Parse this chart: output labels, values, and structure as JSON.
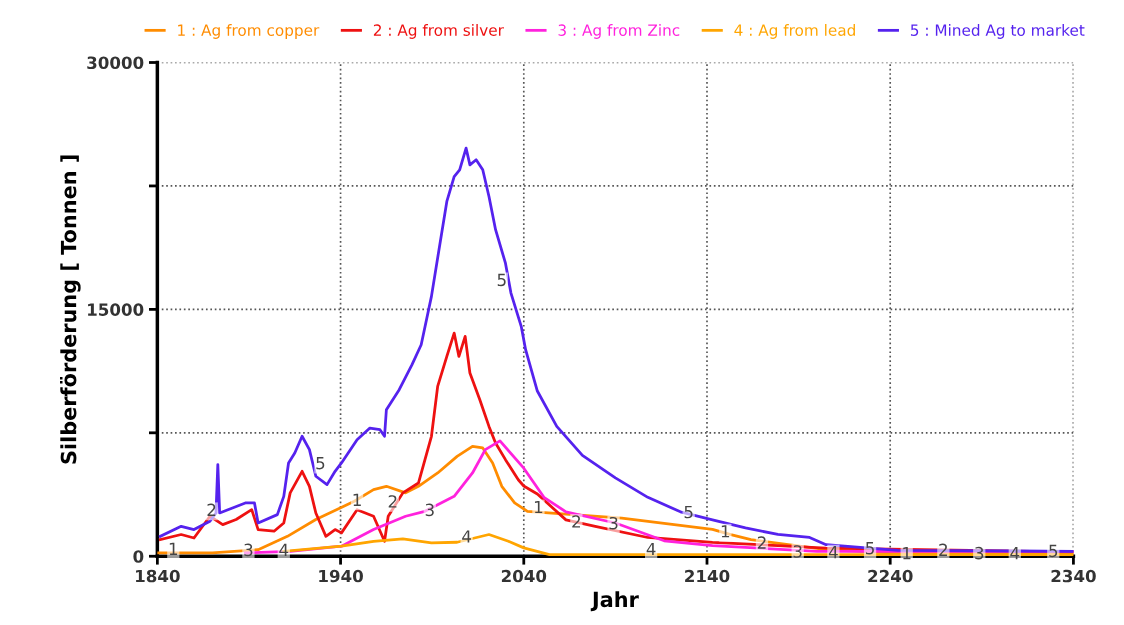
{
  "chart_data": {
    "type": "line",
    "xlabel": "Jahr",
    "ylabel": "Silberförderung [ Tonnen ]",
    "xlim": [
      1840,
      2340
    ],
    "xticks": [
      1840,
      1940,
      2040,
      2140,
      2240,
      2340
    ],
    "ylim": [
      0,
      30000
    ],
    "yticks": [
      0,
      {
        "value": 7500,
        "label": null
      },
      15000,
      {
        "value": 22500,
        "label": null
      },
      30000
    ],
    "grid": true,
    "legend": "top",
    "line_style": "solid",
    "marker": "none",
    "series": [
      {
        "name": "1 : Ag from copper",
        "color": "#ff8c00",
        "x": [
          1840,
          1870,
          1895,
          1911,
          1926.5,
          1947.5,
          1958,
          1965,
          1975.5,
          1982.5,
          1993,
          2003.6,
          2012,
          2017.6,
          2023,
          2028,
          2035,
          2042,
          2093.5,
          2143,
          2153,
          2164,
          2205,
          2240,
          2340
        ],
        "values": [
          200,
          200,
          400,
          1210,
          2230,
          3340,
          4050,
          4250,
          3850,
          4250,
          5060,
          6070,
          6680,
          6580,
          5670,
          4250,
          3240,
          2730,
          2310,
          1630,
          1310,
          1010,
          400,
          200,
          200
        ]
      },
      {
        "name": "2 : Ag from silver",
        "color": "#ee1111",
        "x": [
          1841.6,
          1853,
          1860,
          1868.7,
          1875.7,
          1883,
          1891.5,
          1895,
          1903.7,
          1909,
          1912.5,
          1919,
          1923,
          1926.5,
          1932,
          1937,
          1940.5,
          1949,
          1958,
          1964,
          1966,
          1974,
          1982.5,
          1989.6,
          1993,
          1998,
          2002,
          2004.6,
          2008,
          2010.6,
          2016,
          2021,
          2024.6,
          2030,
          2037,
          2040,
          2047.4,
          2063,
          2079,
          2107.7,
          2143,
          2178.7,
          2205,
          2340
        ],
        "values": [
          1010,
          1320,
          1110,
          2430,
          1920,
          2230,
          2830,
          1620,
          1520,
          2020,
          3850,
          5160,
          4250,
          2630,
          1210,
          1620,
          1420,
          2830,
          2430,
          910,
          2430,
          3850,
          4450,
          7290,
          10320,
          12140,
          13560,
          12140,
          13360,
          11130,
          9510,
          7890,
          6880,
          5870,
          4650,
          4270,
          3780,
          2210,
          1820,
          1140,
          840,
          650,
          500,
          250
        ]
      },
      {
        "name": "3 : Ag from Zinc",
        "color": "#ff22dd",
        "x": [
          1888,
          1912.5,
          1940.5,
          1958,
          1975.5,
          1986,
          2002,
          2012,
          2019,
          2027,
          2040,
          2051,
          2063,
          2090,
          2116.6,
          2143,
          2200,
          2340
        ],
        "values": [
          200,
          300,
          610,
          1620,
          2430,
          2730,
          3640,
          5060,
          6480,
          7010,
          5350,
          3580,
          2700,
          2020,
          940,
          650,
          300,
          300
        ]
      },
      {
        "name": "4 : Ag from lead",
        "color": "#ffa500",
        "x": [
          1909,
          1940.5,
          1958,
          1974,
          1989.6,
          2003.6,
          2021,
          2031.6,
          2040,
          2054,
          2070,
          2340
        ],
        "values": [
          300,
          610,
          910,
          1050,
          810,
          850,
          1320,
          910,
          510,
          100,
          100,
          100
        ]
      },
      {
        "name": "5 : Mined Ag to market",
        "color": "#5522ee",
        "x": [
          1841.6,
          1853,
          1860,
          1868.7,
          1872,
          1873,
          1874,
          1881,
          1888,
          1893,
          1895,
          1905.5,
          1909,
          1911.6,
          1915,
          1919,
          1923,
          1926.5,
          1932.6,
          1937,
          1940.5,
          1949,
          1956,
          1961.5,
          1964,
          1965,
          1972,
          1979,
          1984,
          1989.6,
          1994,
          1998,
          2002,
          2005,
          2008.5,
          2010.6,
          2014,
          2017.6,
          2021,
          2024.6,
          2030,
          2033,
          2038.6,
          2041,
          2047.4,
          2058,
          2072,
          2090,
          2107.7,
          2125.5,
          2143,
          2161,
          2178.7,
          2196,
          2205,
          2244,
          2340
        ],
        "values": [
          1210,
          1820,
          1620,
          2130,
          2630,
          5570,
          2630,
          2930,
          3240,
          3240,
          2020,
          2530,
          3640,
          5670,
          6270,
          7290,
          6480,
          4860,
          4350,
          5160,
          5670,
          7080,
          7790,
          7690,
          7290,
          8900,
          10120,
          11640,
          12850,
          15790,
          18820,
          21560,
          23070,
          23480,
          24800,
          23780,
          24090,
          23480,
          21860,
          19840,
          17810,
          15990,
          13970,
          12550,
          10040,
          7890,
          6130,
          4760,
          3580,
          2700,
          2210,
          1720,
          1330,
          1140,
          700,
          360,
          300
        ]
      }
    ],
    "annotations": [
      {
        "text": "1",
        "x": 1848.7,
        "y": 360
      },
      {
        "text": "2",
        "x": 1869.6,
        "y": 2730
      },
      {
        "text": "3",
        "x": 1889.7,
        "y": 300
      },
      {
        "text": "4",
        "x": 1909,
        "y": 300
      },
      {
        "text": "5",
        "x": 1929,
        "y": 5570
      },
      {
        "text": "1",
        "x": 1949,
        "y": 3340
      },
      {
        "text": "2",
        "x": 1968.5,
        "y": 3240
      },
      {
        "text": "3",
        "x": 1988.7,
        "y": 2730
      },
      {
        "text": "4",
        "x": 2008.8,
        "y": 1110
      },
      {
        "text": "5",
        "x": 2028,
        "y": 16700
      },
      {
        "text": "1",
        "x": 2048,
        "y": 2900
      },
      {
        "text": "2",
        "x": 2068.7,
        "y": 2020
      },
      {
        "text": "3",
        "x": 2089,
        "y": 1920
      },
      {
        "text": "4",
        "x": 2109.5,
        "y": 350
      },
      {
        "text": "5",
        "x": 2130,
        "y": 2600
      },
      {
        "text": "1",
        "x": 2150,
        "y": 1430
      },
      {
        "text": "2",
        "x": 2170,
        "y": 740
      },
      {
        "text": "3",
        "x": 2189.5,
        "y": 200
      },
      {
        "text": "4",
        "x": 2209,
        "y": 160
      },
      {
        "text": "5",
        "x": 2229,
        "y": 400
      },
      {
        "text": "1",
        "x": 2249,
        "y": 100
      },
      {
        "text": "2",
        "x": 2269,
        "y": 300
      },
      {
        "text": "3",
        "x": 2288.6,
        "y": 100
      },
      {
        "text": "4",
        "x": 2308,
        "y": 100
      },
      {
        "text": "5",
        "x": 2329,
        "y": 240
      }
    ]
  }
}
